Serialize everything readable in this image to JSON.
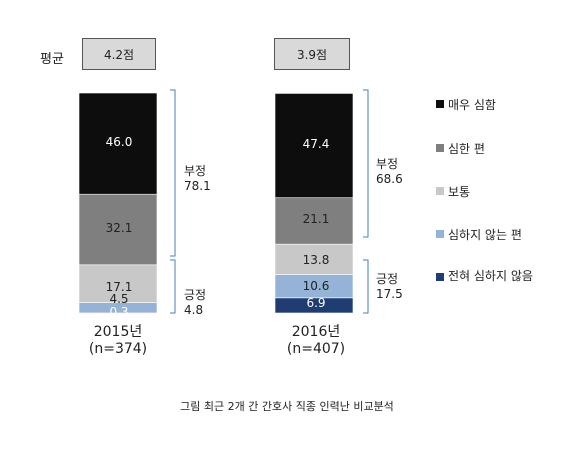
{
  "average": {
    "label": "평균",
    "values": [
      "4.2점",
      "3.9점"
    ]
  },
  "chart_data": {
    "type": "bar",
    "stacked": true,
    "categories": [
      "2015년 (n=374)",
      "2016년 (n=407)"
    ],
    "category_lines": [
      [
        "2015년",
        "(n=374)"
      ],
      [
        "2016년",
        "(n=407)"
      ]
    ],
    "series": [
      {
        "name": "전혀 심하지 않음",
        "color": "#1f3d73",
        "values": [
          0.3,
          6.9
        ],
        "labels": [
          "0.3",
          "6.9"
        ]
      },
      {
        "name": "심하지 않는 편",
        "color": "#95b3d7",
        "values": [
          4.5,
          10.6
        ],
        "labels": [
          "4.5",
          "10.6"
        ]
      },
      {
        "name": "보통",
        "color": "#c8c8c8",
        "values": [
          17.1,
          13.8
        ],
        "labels": [
          "17.1",
          "13.8"
        ]
      },
      {
        "name": "심한 편",
        "color": "#7f7f7f",
        "values": [
          32.1,
          21.1
        ],
        "labels": [
          "32.1",
          "21.1"
        ]
      },
      {
        "name": "매우 심함",
        "color": "#0d0d0d",
        "values": [
          46.0,
          47.4
        ],
        "labels": [
          "46.0",
          "47.4"
        ]
      }
    ],
    "groups": [
      {
        "name": "부정",
        "values": [
          "78.1",
          "68.6"
        ]
      },
      {
        "name": "긍정",
        "values": [
          "4.8",
          "17.5"
        ]
      }
    ],
    "legend": [
      "매우 심함",
      "심한 편",
      "보통",
      "심하지 않는 편",
      "전혀 심하지 않음"
    ],
    "legend_position": "right",
    "grid": false
  },
  "caption": "그림   최근 2개 간 간호사 직종 인력난 비교분석"
}
